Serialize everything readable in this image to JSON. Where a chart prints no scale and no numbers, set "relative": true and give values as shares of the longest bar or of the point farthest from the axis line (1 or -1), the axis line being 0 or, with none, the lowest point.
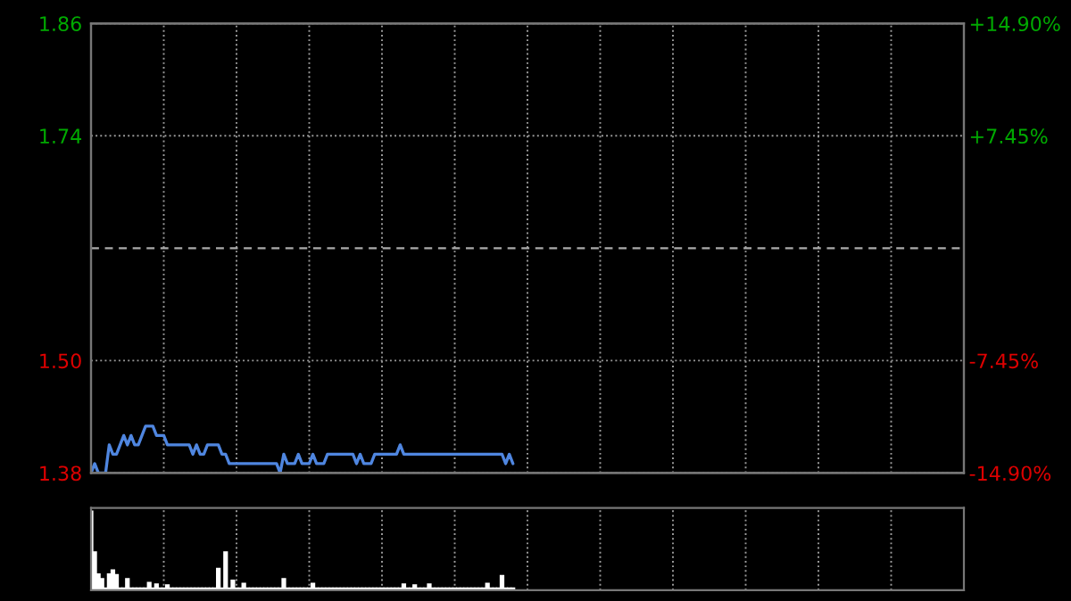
{
  "chart_data": [
    {
      "type": "line",
      "categories": [
        null,
        null,
        null,
        null,
        null,
        null,
        null,
        null,
        null,
        null,
        null,
        null,
        null,
        null,
        null,
        null,
        null,
        null,
        null,
        null,
        null,
        null,
        null,
        null,
        null,
        null,
        null,
        null,
        null,
        null,
        null,
        null,
        null,
        null,
        null,
        null,
        null,
        null,
        null,
        null,
        null,
        null,
        null,
        null,
        null,
        null,
        null,
        null,
        null,
        null,
        null,
        null,
        null,
        null,
        null,
        null,
        null,
        null,
        null,
        null,
        null,
        null,
        null,
        null,
        null,
        null,
        null,
        null,
        null,
        null,
        null,
        null,
        null,
        null,
        null,
        null,
        null,
        null,
        null,
        null,
        null,
        null,
        null,
        null,
        null,
        null,
        null,
        null,
        null,
        null,
        null,
        null,
        null,
        null,
        null,
        null,
        null,
        null,
        null,
        null,
        null,
        null,
        null,
        null,
        null,
        null,
        null,
        null,
        null,
        null,
        null,
        null,
        null,
        null,
        null,
        null,
        null,
        null,
        null,
        null,
        null,
        null,
        null,
        null,
        null,
        null,
        null,
        null,
        null,
        null,
        null,
        null,
        null,
        null,
        null,
        null,
        null,
        null,
        null,
        null,
        null,
        null,
        null,
        null,
        null,
        null,
        null,
        null,
        null,
        null,
        null,
        null,
        null,
        null,
        null,
        null,
        null,
        null,
        null,
        null,
        null,
        null,
        null,
        null,
        null,
        null,
        null,
        null,
        null,
        null,
        null,
        null,
        null,
        null,
        null,
        null,
        null,
        null,
        null,
        null,
        null,
        null,
        null,
        null,
        null,
        null,
        null,
        null,
        null,
        null,
        null,
        null,
        null,
        null,
        null,
        null,
        null,
        null,
        null,
        null,
        null,
        null,
        null,
        null,
        null,
        null,
        null,
        null,
        null,
        null,
        null,
        null,
        null,
        null,
        null,
        null,
        null,
        null,
        null,
        null,
        null,
        null,
        null,
        null,
        null,
        null,
        null,
        null,
        null,
        null,
        null,
        null,
        null,
        null,
        null,
        null,
        null,
        null,
        null,
        null,
        null
      ],
      "series": [
        {
          "color": "#4f86e0",
          "values": [
            1.38,
            1.39,
            1.38,
            1.38,
            1.38,
            1.41,
            1.4,
            1.4,
            1.41,
            1.42,
            1.41,
            1.42,
            1.41,
            1.41,
            1.42,
            1.43,
            1.43,
            1.43,
            1.42,
            1.42,
            1.42,
            1.41,
            1.41,
            1.41,
            1.41,
            1.41,
            1.41,
            1.41,
            1.4,
            1.41,
            1.4,
            1.4,
            1.41,
            1.41,
            1.41,
            1.41,
            1.4,
            1.4,
            1.39,
            1.39,
            1.39,
            1.39,
            1.39,
            1.39,
            1.39,
            1.39,
            1.39,
            1.39,
            1.39,
            1.39,
            1.39,
            1.39,
            1.38,
            1.4,
            1.39,
            1.39,
            1.39,
            1.4,
            1.39,
            1.39,
            1.39,
            1.4,
            1.39,
            1.39,
            1.39,
            1.4,
            1.4,
            1.4,
            1.4,
            1.4,
            1.4,
            1.4,
            1.4,
            1.39,
            1.4,
            1.39,
            1.39,
            1.39,
            1.4,
            1.4,
            1.4,
            1.4,
            1.4,
            1.4,
            1.4,
            1.41,
            1.4,
            1.4,
            1.4,
            1.4,
            1.4,
            1.4,
            1.4,
            1.4,
            1.4,
            1.4,
            1.4,
            1.4,
            1.4,
            1.4,
            1.4,
            1.4,
            1.4,
            1.4,
            1.4,
            1.4,
            1.4,
            1.4,
            1.4,
            1.4,
            1.4,
            1.4,
            1.4,
            1.4,
            1.39,
            1.4,
            1.39,
            null,
            null,
            null,
            null,
            null,
            null,
            null,
            null,
            null,
            null,
            null,
            null,
            null,
            null,
            null,
            null,
            null,
            null,
            null,
            null,
            null,
            null,
            null,
            null,
            null,
            null,
            null,
            null,
            null,
            null,
            null,
            null,
            null,
            null,
            null,
            null,
            null,
            null,
            null,
            null,
            null,
            null,
            null,
            null,
            null,
            null,
            null,
            null,
            null,
            null,
            null,
            null,
            null,
            null,
            null,
            null,
            null,
            null,
            null,
            null,
            null,
            null,
            null,
            null,
            null,
            null,
            null,
            null,
            null,
            null,
            null,
            null,
            null,
            null,
            null,
            null,
            null,
            null,
            null,
            null,
            null,
            null,
            null,
            null,
            null,
            null,
            null,
            null,
            null,
            null,
            null,
            null,
            null,
            null,
            null,
            null,
            null,
            null,
            null,
            null,
            null,
            null,
            null,
            null,
            null,
            null,
            null,
            null,
            null,
            null,
            null,
            null,
            null,
            null,
            null,
            null,
            null,
            null,
            null,
            null,
            null,
            null,
            null,
            null
          ]
        }
      ],
      "ylim": [
        1.38,
        1.86
      ],
      "yticks": [
        {
          "value": 1.38,
          "label": "1.38"
        },
        {
          "value": 1.5,
          "label": "1.50"
        },
        {
          "value": 1.74,
          "label": "1.74"
        },
        {
          "value": 1.86,
          "label": "1.86"
        }
      ],
      "y2lim": [
        -14.9,
        14.9
      ],
      "y2ticks": [
        {
          "value": -14.9,
          "label": "-14.90%"
        },
        {
          "value": -7.45,
          "label": "-7.45%"
        },
        {
          "value": 7.45,
          "label": "+7.45%"
        },
        {
          "value": 14.9,
          "label": "+14.90%"
        }
      ],
      "ref_lines": [
        {
          "axis": "y",
          "value": 1.62,
          "color": "#aaaaaa",
          "line_style": "dashed"
        }
      ],
      "grid": true,
      "tick_labels": "y"
    },
    {
      "type": "bar",
      "relative": true,
      "categories": [
        null,
        null,
        null,
        null,
        null,
        null,
        null,
        null,
        null,
        null,
        null,
        null,
        null,
        null,
        null,
        null,
        null,
        null,
        null,
        null,
        null,
        null,
        null,
        null,
        null,
        null,
        null,
        null,
        null,
        null,
        null,
        null,
        null,
        null,
        null,
        null,
        null,
        null,
        null,
        null,
        null,
        null,
        null,
        null,
        null,
        null,
        null,
        null,
        null,
        null,
        null,
        null,
        null,
        null,
        null,
        null,
        null,
        null,
        null,
        null,
        null,
        null,
        null,
        null,
        null,
        null,
        null,
        null,
        null,
        null,
        null,
        null,
        null,
        null,
        null,
        null,
        null,
        null,
        null,
        null,
        null,
        null,
        null,
        null,
        null,
        null,
        null,
        null,
        null,
        null,
        null,
        null,
        null,
        null,
        null,
        null,
        null,
        null,
        null,
        null,
        null,
        null,
        null,
        null,
        null,
        null,
        null,
        null,
        null,
        null,
        null,
        null,
        null,
        null,
        null,
        null,
        null,
        null,
        null,
        null,
        null,
        null,
        null,
        null,
        null,
        null,
        null,
        null,
        null,
        null,
        null,
        null,
        null,
        null,
        null,
        null,
        null,
        null,
        null,
        null,
        null,
        null,
        null,
        null,
        null,
        null,
        null,
        null,
        null,
        null,
        null,
        null,
        null,
        null,
        null,
        null,
        null,
        null,
        null,
        null,
        null,
        null,
        null,
        null,
        null,
        null,
        null,
        null,
        null,
        null,
        null,
        null,
        null,
        null,
        null,
        null,
        null,
        null,
        null,
        null,
        null,
        null,
        null,
        null,
        null,
        null,
        null,
        null,
        null,
        null,
        null,
        null,
        null,
        null,
        null,
        null,
        null,
        null,
        null,
        null,
        null,
        null,
        null,
        null,
        null,
        null,
        null,
        null,
        null,
        null,
        null,
        null,
        null,
        null,
        null,
        null,
        null,
        null,
        null,
        null,
        null,
        null,
        null,
        null,
        null,
        null,
        null,
        null,
        null,
        null,
        null,
        null,
        null,
        null,
        null,
        null,
        null,
        null,
        null,
        null,
        null
      ],
      "series": [
        {
          "color": "#bbbbbb",
          "values": [
            1.0,
            0.48,
            0.2,
            0.14,
            0.02,
            0.2,
            0.25,
            0.19,
            0.02,
            0.02,
            0.14,
            0.02,
            0.02,
            0.02,
            0.02,
            0.02,
            0.09,
            0.02,
            0.07,
            0.02,
            0.02,
            0.06,
            0.02,
            0.02,
            0.02,
            0.02,
            0.02,
            0.02,
            0.02,
            0.02,
            0.02,
            0.02,
            0.02,
            0.02,
            0.02,
            0.27,
            0.02,
            0.48,
            0.02,
            0.12,
            0.02,
            0.02,
            0.08,
            0.02,
            0.02,
            0.02,
            0.02,
            0.02,
            0.02,
            0.02,
            0.02,
            0.02,
            0.02,
            0.14,
            0.02,
            0.02,
            0.02,
            0.02,
            0.02,
            0.02,
            0.02,
            0.08,
            0.02,
            0.02,
            0.02,
            0.02,
            0.02,
            0.02,
            0.02,
            0.02,
            0.02,
            0.02,
            0.02,
            0.02,
            0.02,
            0.02,
            0.02,
            0.02,
            0.02,
            0.02,
            0.02,
            0.02,
            0.02,
            0.02,
            0.02,
            0.02,
            0.07,
            0.02,
            0.02,
            0.06,
            0.02,
            0.02,
            0.02,
            0.07,
            0.02,
            0.02,
            0.02,
            0.02,
            0.02,
            0.02,
            0.02,
            0.02,
            0.02,
            0.02,
            0.02,
            0.02,
            0.02,
            0.02,
            0.02,
            0.08,
            0.02,
            0.02,
            0.02,
            0.18,
            0.02,
            0.02,
            0.02,
            null,
            null,
            null,
            null,
            null,
            null,
            null,
            null,
            null,
            null,
            null,
            null,
            null,
            null,
            null,
            null,
            null,
            null,
            null,
            null,
            null,
            null,
            null,
            null,
            null,
            null,
            null,
            null,
            null,
            null,
            null,
            null,
            null,
            null,
            null,
            null,
            null,
            null,
            null,
            null,
            null,
            null,
            null,
            null,
            null,
            null,
            null,
            null,
            null,
            null,
            null,
            null,
            null,
            null,
            null,
            null,
            null,
            null,
            null,
            null,
            null,
            null,
            null,
            null,
            null,
            null,
            null,
            null,
            null,
            null,
            null,
            null,
            null,
            null,
            null,
            null,
            null,
            null,
            null,
            null,
            null,
            null,
            null,
            null,
            null,
            null,
            null,
            null,
            null,
            null,
            null,
            null,
            null,
            null,
            null,
            null,
            null,
            null,
            null,
            null,
            null,
            null,
            null,
            null,
            null,
            null,
            null,
            null,
            null,
            null,
            null,
            null,
            null,
            null,
            null,
            null,
            null,
            null,
            null,
            null,
            null,
            null,
            null,
            null
          ]
        }
      ],
      "grid": "x",
      "tick_labels": false
    }
  ]
}
